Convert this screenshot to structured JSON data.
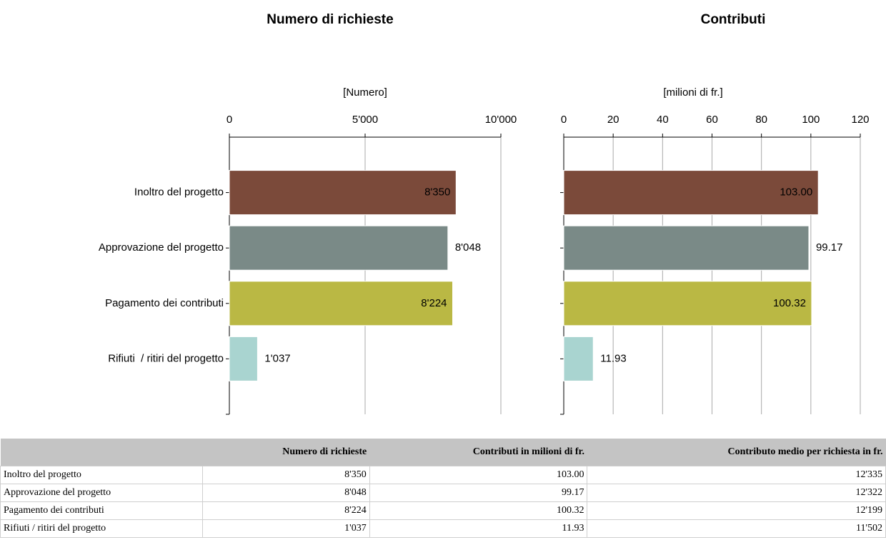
{
  "chart_data": [
    {
      "type": "hbar",
      "title": "Numero di richieste",
      "x_label": "[Numero]",
      "categories": [
        "Inoltro del progetto",
        "Approvazione del progetto",
        "Pagamento dei contributi",
        "Rifiuti  / ritiri del progetto"
      ],
      "values": [
        8350,
        8048,
        8224,
        1037
      ],
      "value_labels": [
        "8'350",
        "8'048",
        "8'224",
        "1'037"
      ],
      "colors": [
        "#7b4a3a",
        "#7a8a87",
        "#bab844",
        "#a9d4d0"
      ],
      "xlim": [
        0,
        10000
      ],
      "xticks": [
        0,
        {
          "value": 5000,
          "label": "5'000"
        },
        {
          "value": 10000,
          "label": "10'000"
        }
      ],
      "grid": true
    },
    {
      "type": "hbar",
      "title": "Contributi",
      "x_label": "[milioni di fr.]",
      "categories": [
        null,
        null,
        null,
        null
      ],
      "values": [
        103.0,
        99.17,
        100.32,
        11.93
      ],
      "value_labels": [
        "103.00",
        "99.17",
        "100.32",
        "11.93"
      ],
      "colors": [
        "#7b4a3a",
        "#7a8a87",
        "#bab844",
        "#a9d4d0"
      ],
      "xlim": [
        0,
        120
      ],
      "xticks": [
        0,
        20,
        40,
        60,
        80,
        100,
        120
      ],
      "grid": true
    }
  ],
  "table": {
    "header": [
      "Numero di richieste",
      "Contributi in milioni di fr.",
      "Contributo medio per richiesta in fr."
    ],
    "rows": [
      [
        "Inoltro del progetto",
        "8'350",
        "103.00",
        "12'335"
      ],
      [
        "Approvazione del progetto",
        "8'048",
        "99.17",
        "12'322"
      ],
      [
        "Pagamento dei contributi",
        "8'224",
        "100.32",
        "12'199"
      ],
      [
        "Rifiuti  / ritiri del progetto",
        "1'037",
        "11.93",
        "11'502"
      ]
    ]
  }
}
